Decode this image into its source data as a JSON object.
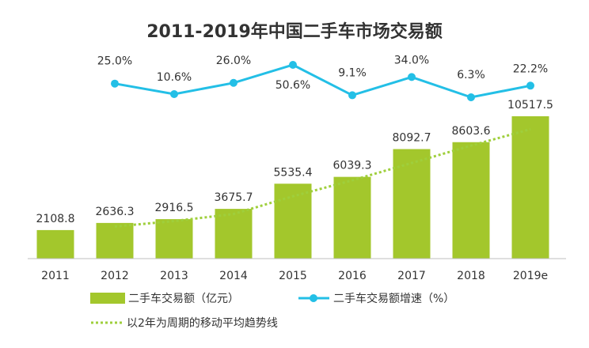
{
  "chart_data": {
    "type": "bar",
    "title": "2011-2019年中国二手车市场交易额",
    "categories": [
      "2011",
      "2012",
      "2013",
      "2014",
      "2015",
      "2016",
      "2017",
      "2018",
      "2019e"
    ],
    "series": [
      {
        "name": "二手车交易额（亿元）",
        "type": "bar",
        "values": [
          2108.8,
          2636.3,
          2916.5,
          3675.7,
          5535.4,
          6039.3,
          8092.7,
          8603.6,
          10517.5
        ],
        "labels": [
          "2108.8",
          "2636.3",
          "2916.5",
          "3675.7",
          "5535.4",
          "6039.3",
          "8092.7",
          "8603.6",
          "10517.5"
        ],
        "color": "#a3c72c"
      },
      {
        "name": "二手车交易额增速（%）",
        "type": "line",
        "values": [
          null,
          25.0,
          10.6,
          26.0,
          50.6,
          9.1,
          34.0,
          6.3,
          22.2
        ],
        "labels": [
          "",
          "25.0%",
          "10.6%",
          "26.0%",
          "50.6%",
          "9.1%",
          "34.0%",
          "6.3%",
          "22.2%"
        ],
        "color": "#23bfe6"
      },
      {
        "name": "以2年为周期的移动平均趋势线",
        "type": "trendline",
        "values": [
          null,
          2372.55,
          2776.4,
          3296.1,
          4605.55,
          5787.35,
          7066.0,
          8348.15,
          9560.55
        ],
        "color": "#9fcf3c"
      }
    ],
    "ylim": [
      0,
      12000
    ],
    "grid": false,
    "legend_position": "bottom"
  }
}
